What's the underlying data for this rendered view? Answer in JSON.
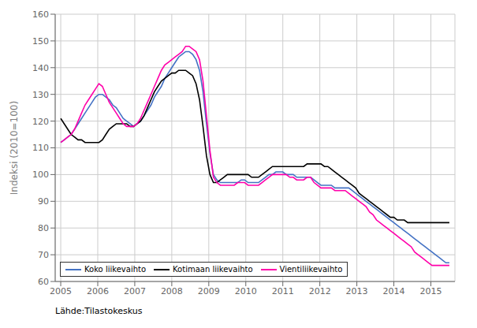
{
  "chart_data": {
    "type": "line",
    "ylabel": "Indeksi (2010=100)",
    "annotations": [
      "Lähde:Tilastokeskus"
    ],
    "x": [
      2005,
      2005.09375,
      2005.1875,
      2005.28125,
      2005.375,
      2005.46875,
      2005.5625,
      2005.65625,
      2005.75,
      2005.84375,
      2005.9375,
      2006.03125,
      2006.125,
      2006.21875,
      2006.3125,
      2006.40625,
      2006.5,
      2006.59375,
      2006.6875,
      2006.78125,
      2006.875,
      2006.96875,
      2007.0625,
      2007.15625,
      2007.25,
      2007.34375,
      2007.4375,
      2007.53125,
      2007.625,
      2007.71875,
      2007.8125,
      2007.90625,
      2008,
      2008.09375,
      2008.1875,
      2008.28125,
      2008.375,
      2008.46875,
      2008.5625,
      2008.65625,
      2008.75,
      2008.84375,
      2008.9375,
      2009.03125,
      2009.125,
      2009.21875,
      2009.3125,
      2009.40625,
      2009.5,
      2009.59375,
      2009.6875,
      2009.78125,
      2009.875,
      2009.96875,
      2010.0625,
      2010.15625,
      2010.25,
      2010.34375,
      2010.4375,
      2010.53125,
      2010.625,
      2010.71875,
      2010.8125,
      2010.90625,
      2011,
      2011.09375,
      2011.1875,
      2011.28125,
      2011.375,
      2011.46875,
      2011.5625,
      2011.65625,
      2011.75,
      2011.84375,
      2011.9375,
      2012.03125,
      2012.125,
      2012.21875,
      2012.3125,
      2012.40625,
      2012.5,
      2012.59375,
      2012.6875,
      2012.78125,
      2012.875,
      2012.96875,
      2013.0625,
      2013.15625,
      2013.25,
      2013.34375,
      2013.4375,
      2013.53125,
      2013.625,
      2013.71875,
      2013.8125,
      2013.90625,
      2014,
      2014.09375,
      2014.1875,
      2014.28125,
      2014.375,
      2014.46875,
      2014.5625,
      2014.65625,
      2014.75,
      2014.84375,
      2014.9375,
      2015.03125,
      2015.125,
      2015.21875,
      2015.3125,
      2015.40625,
      2015.5
    ],
    "xlim": [
      2004.85,
      2015.65
    ],
    "xticks": [
      2005,
      2006,
      2007,
      2008,
      2009,
      2010,
      2011,
      2012,
      2013,
      2014,
      2015
    ],
    "ylim": [
      60,
      160
    ],
    "yticks": [
      60,
      70,
      80,
      90,
      100,
      110,
      120,
      130,
      140,
      150,
      160
    ],
    "grid": true,
    "legend": "lower left",
    "series": [
      {
        "name": "Koko liikevaihto",
        "color": "#4472C4",
        "values": [
          112,
          113,
          114,
          115,
          117,
          119,
          121,
          123,
          125,
          127,
          129,
          130,
          130,
          129,
          128,
          126,
          125,
          123,
          121,
          120,
          119,
          118,
          119,
          120,
          122,
          124,
          126,
          129,
          131,
          133,
          136,
          138,
          140,
          142,
          144,
          145,
          146,
          146,
          145,
          143,
          139,
          131,
          119,
          108,
          100,
          98,
          97,
          97,
          97,
          97,
          97,
          97,
          98,
          98,
          97,
          97,
          97,
          97,
          98,
          99,
          100,
          100,
          101,
          101,
          101,
          100,
          100,
          100,
          99,
          99,
          99,
          99,
          99,
          98,
          97,
          96,
          96,
          96,
          96,
          95,
          95,
          95,
          95,
          95,
          94,
          93,
          92,
          91,
          90,
          89,
          88,
          87,
          86,
          85,
          84,
          83,
          82,
          81,
          80,
          79,
          78,
          77,
          76,
          75,
          74,
          73,
          72,
          71,
          70,
          69,
          68,
          67,
          67
        ]
      },
      {
        "name": "Kotimaan liikevaihto",
        "color": "#000000",
        "values": [
          121,
          119,
          117,
          115,
          114,
          113,
          113,
          112,
          112,
          112,
          112,
          112,
          113,
          115,
          117,
          118,
          119,
          119,
          119,
          119,
          118,
          118,
          119,
          120,
          122,
          125,
          128,
          131,
          133,
          135,
          136,
          137,
          138,
          138,
          139,
          139,
          139,
          138,
          137,
          134,
          128,
          118,
          107,
          100,
          97,
          97,
          98,
          99,
          100,
          100,
          100,
          100,
          100,
          100,
          100,
          99,
          99,
          99,
          100,
          101,
          102,
          103,
          103,
          103,
          103,
          103,
          103,
          103,
          103,
          103,
          103,
          104,
          104,
          104,
          104,
          104,
          103,
          103,
          102,
          101,
          100,
          99,
          98,
          97,
          96,
          95,
          93,
          92,
          91,
          90,
          89,
          88,
          87,
          86,
          85,
          84,
          84,
          83,
          83,
          83,
          82,
          82,
          82,
          82,
          82,
          82,
          82,
          82,
          82,
          82,
          82,
          82,
          82
        ]
      },
      {
        "name": "Vientiliikevaihto",
        "color": "#FF00AA",
        "values": [
          112,
          113,
          114,
          115,
          117,
          120,
          123,
          126,
          128,
          130,
          132,
          134,
          133,
          130,
          127,
          125,
          123,
          121,
          119,
          118,
          118,
          118,
          119,
          121,
          124,
          127,
          130,
          133,
          136,
          139,
          141,
          142,
          143,
          144,
          145,
          146,
          148,
          148,
          147,
          146,
          143,
          135,
          122,
          109,
          99,
          97,
          96,
          96,
          96,
          96,
          96,
          97,
          97,
          97,
          96,
          96,
          96,
          96,
          97,
          98,
          99,
          100,
          100,
          100,
          100,
          100,
          99,
          99,
          98,
          98,
          98,
          99,
          99,
          97,
          96,
          95,
          95,
          95,
          95,
          94,
          94,
          94,
          94,
          93,
          92,
          91,
          90,
          89,
          88,
          86,
          85,
          83,
          82,
          81,
          80,
          79,
          78,
          77,
          76,
          75,
          74,
          73,
          71,
          70,
          69,
          68,
          67,
          66,
          66,
          66,
          66,
          66,
          66
        ]
      }
    ]
  }
}
